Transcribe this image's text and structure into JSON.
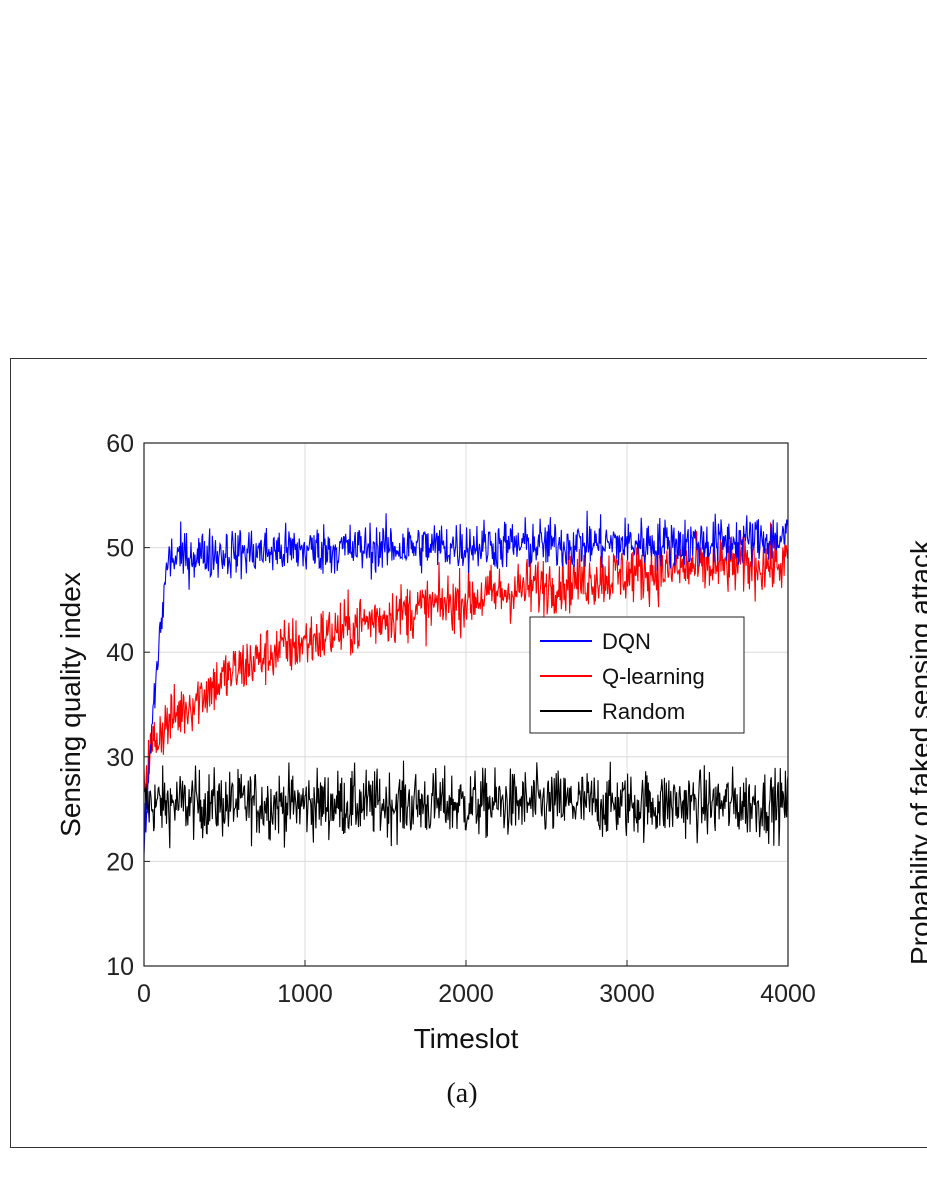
{
  "chart_data": {
    "type": "line",
    "xlabel": "Timeslot",
    "ylabel": "Sensing quality index",
    "xlim": [
      0,
      4000
    ],
    "ylim": [
      10,
      60
    ],
    "xticks": [
      0,
      1000,
      2000,
      3000,
      4000
    ],
    "yticks": [
      10,
      20,
      30,
      40,
      50,
      60
    ],
    "grid": true,
    "legend_position": "center-right",
    "caption": "(a)",
    "right_panel_ylabel_fragment": "Probability of faked sensing attack",
    "series": [
      {
        "name": "DQN",
        "color": "#0000ff",
        "x": [
          0,
          50,
          100,
          150,
          200,
          300,
          500,
          1000,
          1500,
          2000,
          2500,
          3000,
          3500,
          4000
        ],
        "mean": [
          21,
          33,
          42,
          49,
          49,
          49.3,
          49.5,
          49.8,
          50,
          50.2,
          50.3,
          50.4,
          50.5,
          51
        ],
        "noise": 1.2
      },
      {
        "name": "Q-learning",
        "color": "#ff0000",
        "x": [
          0,
          50,
          100,
          200,
          400,
          600,
          800,
          1000,
          1200,
          1500,
          2000,
          2500,
          3000,
          3500,
          4000
        ],
        "mean": [
          28,
          31,
          32.5,
          34,
          36.5,
          38.5,
          40,
          41,
          42,
          43.5,
          45,
          46.5,
          47.5,
          48.2,
          48.5
        ],
        "noise": 1.4
      },
      {
        "name": "Random",
        "color": "#000000",
        "x": [
          0,
          4000
        ],
        "mean": [
          25.5,
          25.5
        ],
        "noise": 1.6
      }
    ]
  }
}
